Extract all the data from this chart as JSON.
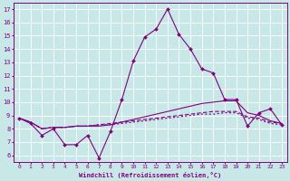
{
  "xlabel": "Windchill (Refroidissement éolien,°C)",
  "background_color": "#c8e8e8",
  "grid_color": "#ffffff",
  "line_color": "#800080",
  "x_hours": [
    0,
    1,
    2,
    3,
    4,
    5,
    6,
    7,
    8,
    9,
    10,
    11,
    12,
    13,
    14,
    15,
    16,
    17,
    18,
    19,
    20,
    21,
    22,
    23
  ],
  "line1_y": [
    8.8,
    8.4,
    7.5,
    8.0,
    6.8,
    6.8,
    7.5,
    5.8,
    7.8,
    10.2,
    13.1,
    14.9,
    15.5,
    17.0,
    15.1,
    14.0,
    12.5,
    12.2,
    10.2,
    10.2,
    8.2,
    9.2,
    9.5,
    8.3
  ],
  "line2_y": [
    8.8,
    8.5,
    8.0,
    8.1,
    8.1,
    8.2,
    8.2,
    8.2,
    8.3,
    8.5,
    8.7,
    8.9,
    9.1,
    9.3,
    9.5,
    9.7,
    9.9,
    10.0,
    10.1,
    10.1,
    9.2,
    9.0,
    8.6,
    8.4
  ],
  "line3_y": [
    8.8,
    8.5,
    8.0,
    8.1,
    8.1,
    8.2,
    8.2,
    8.3,
    8.4,
    8.5,
    8.6,
    8.7,
    8.8,
    8.9,
    9.0,
    9.1,
    9.2,
    9.3,
    9.3,
    9.3,
    8.9,
    8.8,
    8.5,
    8.4
  ],
  "line4_y": [
    8.8,
    8.5,
    8.0,
    8.1,
    8.1,
    8.2,
    8.2,
    8.3,
    8.3,
    8.4,
    8.5,
    8.6,
    8.7,
    8.8,
    8.9,
    9.0,
    9.1,
    9.1,
    9.2,
    9.2,
    8.8,
    8.7,
    8.4,
    8.3
  ],
  "ylim": [
    5.5,
    17.5
  ],
  "yticks": [
    6,
    7,
    8,
    9,
    10,
    11,
    12,
    13,
    14,
    15,
    16,
    17
  ],
  "xlim": [
    -0.5,
    23.5
  ],
  "xticks": [
    0,
    1,
    2,
    3,
    4,
    5,
    6,
    7,
    8,
    9,
    10,
    11,
    12,
    13,
    14,
    15,
    16,
    17,
    18,
    19,
    20,
    21,
    22,
    23
  ],
  "xlabel_fontsize": 5.0,
  "tick_fontsize": 4.5,
  "ytick_fontsize": 5.0,
  "linewidth": 0.8,
  "marker_size": 2.0
}
